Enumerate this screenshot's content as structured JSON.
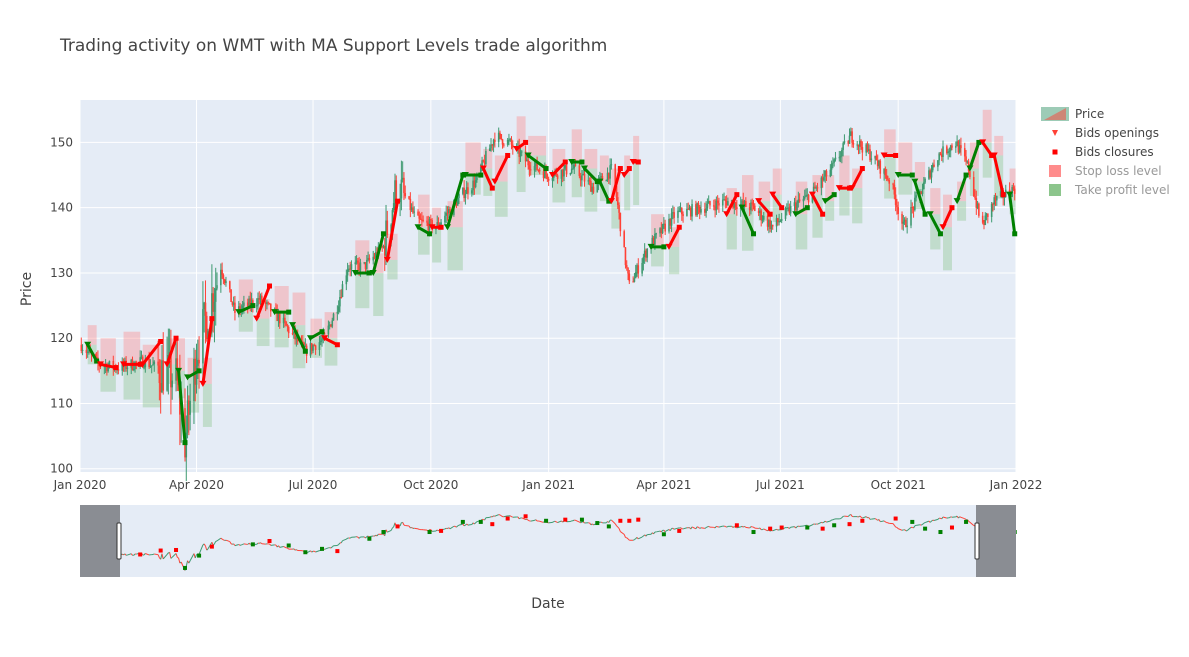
{
  "chart_data": {
    "type": "candlestick",
    "title": "Trading activity on WMT with MA Support Levels trade algorithm",
    "xlabel": "Date",
    "ylabel": "Price",
    "x_range": [
      "2020-01-01",
      "2022-01-01"
    ],
    "ylim": [
      99.5,
      156.5
    ],
    "y_ticks": [
      100,
      110,
      120,
      130,
      140,
      150
    ],
    "x_ticks": [
      {
        "label": "Jan 2020",
        "date": "2020-01-01"
      },
      {
        "label": "Apr 2020",
        "date": "2020-04-01"
      },
      {
        "label": "Jul 2020",
        "date": "2020-07-01"
      },
      {
        "label": "Oct 2020",
        "date": "2020-10-01"
      },
      {
        "label": "Jan 2021",
        "date": "2021-01-01"
      },
      {
        "label": "Apr 2021",
        "date": "2021-04-01"
      },
      {
        "label": "Jul 2021",
        "date": "2021-07-01"
      },
      {
        "label": "Oct 2021",
        "date": "2021-10-01"
      },
      {
        "label": "Jan 2022",
        "date": "2022-01-01"
      }
    ],
    "grid": true,
    "legend_position": "top-right",
    "rangeslider": true,
    "price_path": [
      [
        "2020-01-02",
        119
      ],
      [
        "2020-01-15",
        116
      ],
      [
        "2020-02-01",
        115.5
      ],
      [
        "2020-02-20",
        116.5
      ],
      [
        "2020-03-05",
        115
      ],
      [
        "2020-03-16",
        114
      ],
      [
        "2020-03-23",
        104
      ],
      [
        "2020-04-01",
        118
      ],
      [
        "2020-04-10",
        124
      ],
      [
        "2020-04-20",
        131
      ],
      [
        "2020-05-01",
        124
      ],
      [
        "2020-05-20",
        126
      ],
      [
        "2020-06-05",
        123
      ],
      [
        "2020-06-25",
        118
      ],
      [
        "2020-07-10",
        120
      ],
      [
        "2020-07-20",
        125
      ],
      [
        "2020-07-28",
        131
      ],
      [
        "2020-08-10",
        131
      ],
      [
        "2020-08-25",
        134
      ],
      [
        "2020-09-05",
        144
      ],
      [
        "2020-09-20",
        138
      ],
      [
        "2020-10-05",
        137
      ],
      [
        "2020-10-25",
        142
      ],
      [
        "2020-11-05",
        144
      ],
      [
        "2020-11-20",
        151
      ],
      [
        "2020-12-01",
        150
      ],
      [
        "2020-12-15",
        147
      ],
      [
        "2021-01-01",
        145
      ],
      [
        "2021-01-20",
        146
      ],
      [
        "2021-02-05",
        143
      ],
      [
        "2021-02-20",
        146
      ],
      [
        "2021-03-01",
        133
      ],
      [
        "2021-03-05",
        128
      ],
      [
        "2021-03-20",
        134
      ],
      [
        "2021-04-10",
        139
      ],
      [
        "2021-05-01",
        140
      ],
      [
        "2021-05-20",
        141
      ],
      [
        "2021-06-10",
        140
      ],
      [
        "2021-06-25",
        137
      ],
      [
        "2021-07-10",
        140
      ],
      [
        "2021-07-25",
        142
      ],
      [
        "2021-08-10",
        146
      ],
      [
        "2021-08-25",
        151
      ],
      [
        "2021-09-10",
        148
      ],
      [
        "2021-09-25",
        144
      ],
      [
        "2021-10-05",
        137
      ],
      [
        "2021-10-15",
        141
      ],
      [
        "2021-11-01",
        148
      ],
      [
        "2021-11-15",
        150
      ],
      [
        "2021-11-25",
        146
      ],
      [
        "2021-12-05",
        137
      ],
      [
        "2021-12-15",
        141
      ],
      [
        "2021-12-31",
        143
      ]
    ],
    "trades": [
      {
        "open": [
          "2020-01-07",
          119
        ],
        "close": [
          "2020-01-14",
          116.5
        ],
        "result": "take_profit"
      },
      {
        "open": [
          "2020-01-17",
          116
        ],
        "close": [
          "2020-01-29",
          115.5
        ],
        "result": "stop_loss"
      },
      {
        "open": [
          "2020-02-04",
          116
        ],
        "close": [
          "2020-02-17",
          116
        ],
        "result": "stop_loss"
      },
      {
        "open": [
          "2020-02-19",
          116
        ],
        "close": [
          "2020-03-04",
          119.5
        ],
        "result": "stop_loss"
      },
      {
        "open": [
          "2020-03-09",
          116
        ],
        "close": [
          "2020-03-16",
          120
        ],
        "result": "stop_loss"
      },
      {
        "open": [
          "2020-03-18",
          115
        ],
        "close": [
          "2020-03-23",
          104
        ],
        "result": "take_profit"
      },
      {
        "open": [
          "2020-03-25",
          114
        ],
        "close": [
          "2020-04-03",
          115
        ],
        "result": "take_profit"
      },
      {
        "open": [
          "2020-04-06",
          113
        ],
        "close": [
          "2020-04-13",
          123
        ],
        "result": "stop_loss"
      },
      {
        "open": [
          "2020-05-04",
          124
        ],
        "close": [
          "2020-05-15",
          125
        ],
        "result": "take_profit"
      },
      {
        "open": [
          "2020-05-18",
          123
        ],
        "close": [
          "2020-05-28",
          128
        ],
        "result": "stop_loss"
      },
      {
        "open": [
          "2020-06-01",
          124
        ],
        "close": [
          "2020-06-12",
          124
        ],
        "result": "take_profit"
      },
      {
        "open": [
          "2020-06-15",
          122
        ],
        "close": [
          "2020-06-25",
          118
        ],
        "result": "take_profit"
      },
      {
        "open": [
          "2020-06-29",
          120
        ],
        "close": [
          "2020-07-08",
          121
        ],
        "result": "take_profit"
      },
      {
        "open": [
          "2020-07-10",
          120
        ],
        "close": [
          "2020-07-20",
          119
        ],
        "result": "stop_loss"
      },
      {
        "open": [
          "2020-08-03",
          130
        ],
        "close": [
          "2020-08-14",
          130
        ],
        "result": "take_profit"
      },
      {
        "open": [
          "2020-08-17",
          130
        ],
        "close": [
          "2020-08-25",
          136
        ],
        "result": "take_profit"
      },
      {
        "open": [
          "2020-08-28",
          132
        ],
        "close": [
          "2020-09-05",
          141
        ],
        "result": "stop_loss"
      },
      {
        "open": [
          "2020-09-21",
          137
        ],
        "close": [
          "2020-09-30",
          136
        ],
        "result": "take_profit"
      },
      {
        "open": [
          "2020-10-02",
          137
        ],
        "close": [
          "2020-10-09",
          137
        ],
        "result": "stop_loss"
      },
      {
        "open": [
          "2020-10-14",
          137
        ],
        "close": [
          "2020-10-26",
          145
        ],
        "result": "take_profit"
      },
      {
        "open": [
          "2020-10-28",
          145
        ],
        "close": [
          "2020-11-09",
          145
        ],
        "result": "take_profit"
      },
      {
        "open": [
          "2020-11-11",
          146
        ],
        "close": [
          "2020-11-18",
          143
        ],
        "result": "stop_loss"
      },
      {
        "open": [
          "2020-11-20",
          144
        ],
        "close": [
          "2020-11-30",
          148
        ],
        "result": "stop_loss"
      },
      {
        "open": [
          "2020-12-07",
          149
        ],
        "close": [
          "2020-12-14",
          150
        ],
        "result": "stop_loss"
      },
      {
        "open": [
          "2020-12-16",
          148
        ],
        "close": [
          "2020-12-30",
          146
        ],
        "result": "take_profit"
      },
      {
        "open": [
          "2021-01-04",
          145
        ],
        "close": [
          "2021-01-14",
          147
        ],
        "result": "stop_loss"
      },
      {
        "open": [
          "2021-01-19",
          147
        ],
        "close": [
          "2021-01-27",
          147
        ],
        "result": "take_profit"
      },
      {
        "open": [
          "2021-01-29",
          146
        ],
        "close": [
          "2021-02-08",
          144
        ],
        "result": "take_profit"
      },
      {
        "open": [
          "2021-02-10",
          144
        ],
        "close": [
          "2021-02-17",
          141
        ],
        "result": "take_profit"
      },
      {
        "open": [
          "2021-02-19",
          141
        ],
        "close": [
          "2021-02-26",
          146
        ],
        "result": "stop_loss"
      },
      {
        "open": [
          "2021-03-01",
          145
        ],
        "close": [
          "2021-03-05",
          146
        ],
        "result": "stop_loss"
      },
      {
        "open": [
          "2021-03-08",
          147
        ],
        "close": [
          "2021-03-12",
          147
        ],
        "result": "stop_loss"
      },
      {
        "open": [
          "2021-03-22",
          134
        ],
        "close": [
          "2021-04-01",
          134
        ],
        "result": "take_profit"
      },
      {
        "open": [
          "2021-04-05",
          134
        ],
        "close": [
          "2021-04-13",
          137
        ],
        "result": "stop_loss"
      },
      {
        "open": [
          "2021-05-20",
          139
        ],
        "close": [
          "2021-05-28",
          142
        ],
        "result": "stop_loss"
      },
      {
        "open": [
          "2021-06-01",
          140
        ],
        "close": [
          "2021-06-10",
          136
        ],
        "result": "take_profit"
      },
      {
        "open": [
          "2021-06-14",
          141
        ],
        "close": [
          "2021-06-23",
          139
        ],
        "result": "stop_loss"
      },
      {
        "open": [
          "2021-06-25",
          142
        ],
        "close": [
          "2021-07-02",
          140
        ],
        "result": "stop_loss"
      },
      {
        "open": [
          "2021-07-13",
          139
        ],
        "close": [
          "2021-07-22",
          140
        ],
        "result": "take_profit"
      },
      {
        "open": [
          "2021-07-26",
          142
        ],
        "close": [
          "2021-08-03",
          139
        ],
        "result": "stop_loss"
      },
      {
        "open": [
          "2021-08-05",
          141
        ],
        "close": [
          "2021-08-12",
          142
        ],
        "result": "take_profit"
      },
      {
        "open": [
          "2021-08-16",
          143
        ],
        "close": [
          "2021-08-24",
          143
        ],
        "result": "stop_loss"
      },
      {
        "open": [
          "2021-08-26",
          143
        ],
        "close": [
          "2021-09-03",
          146
        ],
        "result": "stop_loss"
      },
      {
        "open": [
          "2021-09-20",
          148
        ],
        "close": [
          "2021-09-29",
          148
        ],
        "result": "stop_loss"
      },
      {
        "open": [
          "2021-10-01",
          145
        ],
        "close": [
          "2021-10-12",
          145
        ],
        "result": "take_profit"
      },
      {
        "open": [
          "2021-10-14",
          144
        ],
        "close": [
          "2021-10-22",
          139
        ],
        "result": "take_profit"
      },
      {
        "open": [
          "2021-10-26",
          139
        ],
        "close": [
          "2021-11-03",
          136
        ],
        "result": "take_profit"
      },
      {
        "open": [
          "2021-11-05",
          137
        ],
        "close": [
          "2021-11-12",
          140
        ],
        "result": "stop_loss"
      },
      {
        "open": [
          "2021-11-16",
          141
        ],
        "close": [
          "2021-11-23",
          145
        ],
        "result": "take_profit"
      },
      {
        "open": [
          "2021-11-26",
          146
        ],
        "close": [
          "2021-12-03",
          150
        ],
        "result": "take_profit"
      },
      {
        "open": [
          "2021-12-06",
          150
        ],
        "close": [
          "2021-12-13",
          148
        ],
        "result": "stop_loss"
      },
      {
        "open": [
          "2021-12-15",
          148
        ],
        "close": [
          "2021-12-22",
          142
        ],
        "result": "stop_loss"
      },
      {
        "open": [
          "2021-12-27",
          142
        ],
        "close": [
          "2021-12-31",
          136
        ],
        "result": "take_profit"
      }
    ],
    "legend": [
      {
        "label": "Price",
        "kind": "candle"
      },
      {
        "label": "Bids openings",
        "kind": "triangle"
      },
      {
        "label": "Bids closures",
        "kind": "square"
      },
      {
        "label": "Stop loss level",
        "kind": "box-red"
      },
      {
        "label": "Take profit level",
        "kind": "box-green"
      }
    ],
    "colors": {
      "up": "#3D9970",
      "down": "#FF4136",
      "trade_green": "#008000",
      "trade_red": "#FF0000",
      "stop_box": "#FF7F7F",
      "profit_box": "#7FBF7F",
      "plot_bg": "#E5ECF6",
      "slider_mask": "#8A8D93"
    }
  }
}
